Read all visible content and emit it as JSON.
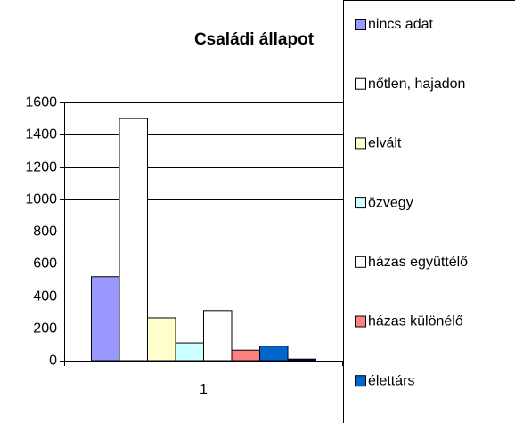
{
  "chart_data": {
    "type": "bar",
    "title": "Családi állapot",
    "categories": [
      "1"
    ],
    "series": [
      {
        "name": "nincs adat",
        "color": "#9999ff",
        "values": [
          520
        ]
      },
      {
        "name": "nőtlen, hajadon",
        "color": "#ffffff",
        "values": [
          1500
        ]
      },
      {
        "name": "elvált",
        "color": "#ffffcc",
        "values": [
          265
        ]
      },
      {
        "name": "özvegy",
        "color": "#ccffff",
        "values": [
          110
        ]
      },
      {
        "name": "házas együttélő",
        "color": "#ffffff",
        "values": [
          310
        ]
      },
      {
        "name": "házas különélő",
        "color": "#ff8080",
        "values": [
          65
        ]
      },
      {
        "name": "élettárs",
        "color": "#0066cc",
        "values": [
          90
        ]
      },
      {
        "name": null,
        "color": "#000080",
        "values": [
          10
        ]
      }
    ],
    "ylim": [
      0,
      1600
    ],
    "yticks": [
      0,
      200,
      400,
      600,
      800,
      1000,
      1200,
      1400,
      1600
    ],
    "grid": true
  }
}
